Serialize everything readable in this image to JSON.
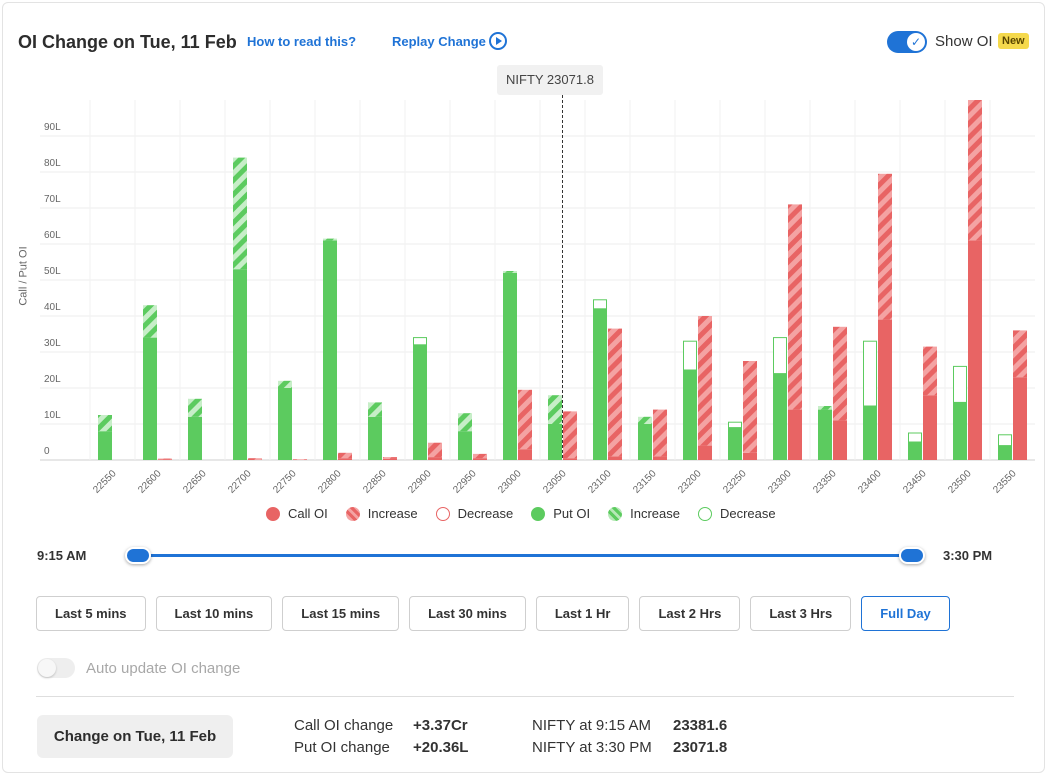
{
  "header": {
    "title": "OI Change on Tue, 11 Feb",
    "how_to_read": "How to read this?",
    "replay": "Replay Change",
    "show_oi_label": "Show OI",
    "new_badge": "New",
    "show_oi_enabled": true
  },
  "spot": {
    "label": "NIFTY 23071.8",
    "strike_position": 23050
  },
  "chart_data": {
    "type": "bar",
    "ylabel": "Call / Put OI",
    "yticks": [
      "0",
      "10L",
      "20L",
      "30L",
      "40L",
      "50L",
      "60L",
      "70L",
      "80L",
      "90L"
    ],
    "ylim": [
      0,
      100
    ],
    "unit": "L",
    "categories": [
      "22550",
      "22600",
      "22650",
      "22700",
      "22750",
      "22800",
      "22850",
      "22900",
      "22950",
      "23000",
      "23050",
      "23100",
      "23150",
      "23200",
      "23250",
      "23300",
      "23350",
      "23400",
      "23450",
      "23500",
      "23550"
    ],
    "series": [
      {
        "name": "Put OI",
        "values": [
          8,
          34,
          12,
          53,
          20,
          61,
          12,
          32,
          8,
          52,
          10,
          42,
          10,
          25,
          9,
          24,
          14,
          15,
          5,
          16,
          4
        ]
      },
      {
        "name": "Put OI Increase",
        "values": [
          4.5,
          9,
          5,
          31,
          2,
          0.5,
          4,
          0,
          5,
          0.5,
          8,
          0,
          2,
          0,
          0,
          0,
          1,
          0,
          0,
          0,
          0
        ]
      },
      {
        "name": "Put OI Decrease",
        "values": [
          0,
          0,
          0,
          0,
          0,
          0,
          0,
          2,
          0,
          0,
          0,
          2.5,
          0,
          8,
          1.5,
          10,
          0,
          18,
          2.5,
          10,
          3
        ]
      },
      {
        "name": "Call OI",
        "values": [
          0,
          0.2,
          0,
          0,
          0,
          0.5,
          0.3,
          0.8,
          0.5,
          3,
          0.5,
          1,
          1,
          4,
          2,
          14,
          11,
          39,
          18,
          61,
          23
        ]
      },
      {
        "name": "Call OI Increase",
        "values": [
          0,
          0.2,
          0,
          0.5,
          0.2,
          1.5,
          0.5,
          4,
          1.2,
          16.5,
          13,
          35.5,
          13,
          36,
          25.5,
          57,
          26,
          40.5,
          13.5,
          39,
          13
        ]
      },
      {
        "name": "Call OI Decrease",
        "values": [
          0,
          0,
          0,
          0,
          0,
          0,
          0,
          0,
          0,
          0,
          0,
          0,
          0,
          0,
          0,
          0,
          0,
          0,
          0,
          0,
          0
        ]
      }
    ],
    "colors": {
      "call": "#e86464",
      "call_light": "#f4a3a3",
      "put": "#5ccb5f",
      "put_light": "#b5e8b6"
    },
    "grid": true
  },
  "legend": {
    "items": [
      {
        "label": "Call OI",
        "style": "call-solid"
      },
      {
        "label": "Increase",
        "style": "call-hatched"
      },
      {
        "label": "Decrease",
        "style": "call-outline"
      },
      {
        "label": "Put OI",
        "style": "put-solid"
      },
      {
        "label": "Increase",
        "style": "put-hatched"
      },
      {
        "label": "Decrease",
        "style": "put-outline"
      }
    ]
  },
  "slider": {
    "start_label": "9:15 AM",
    "end_label": "3:30 PM",
    "start_fraction": 0,
    "end_fraction": 1
  },
  "range_buttons": {
    "items": [
      "Last 5 mins",
      "Last 10 mins",
      "Last 15 mins",
      "Last 30 mins",
      "Last 1 Hr",
      "Last 2 Hrs",
      "Last 3 Hrs",
      "Full Day"
    ],
    "active": "Full Day"
  },
  "auto_update": {
    "label": "Auto update OI change",
    "enabled": false
  },
  "footer": {
    "change_button": "Change on Tue, 11 Feb",
    "call_change_label": "Call OI change",
    "call_change_value": "+3.37Cr",
    "put_change_label": "Put OI change",
    "put_change_value": "+20.36L",
    "nifty_start_label": "NIFTY at 9:15 AM",
    "nifty_start_value": "23381.6",
    "nifty_end_label": "NIFTY at 3:30 PM",
    "nifty_end_value": "23071.8"
  }
}
